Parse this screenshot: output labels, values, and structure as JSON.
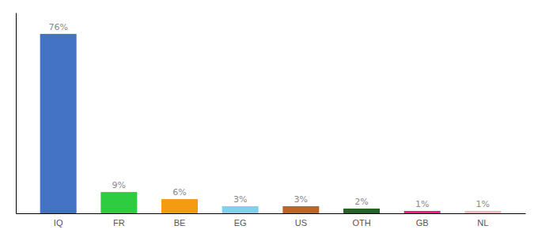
{
  "chart_data": {
    "type": "bar",
    "categories": [
      "IQ",
      "FR",
      "BE",
      "EG",
      "US",
      "OTH",
      "GB",
      "NL"
    ],
    "values": [
      76,
      9,
      6,
      3,
      3,
      2,
      1,
      1
    ],
    "value_labels": [
      "76%",
      "9%",
      "6%",
      "3%",
      "3%",
      "2%",
      "1%",
      "1%"
    ],
    "colors": [
      "#4472c4",
      "#2ecc40",
      "#f39c12",
      "#87ceeb",
      "#c0622a",
      "#276227",
      "#ff1493",
      "#ffb6c1"
    ],
    "ylim": [
      0,
      85
    ],
    "data_labels": true,
    "tick_labels": "x",
    "grid": false
  }
}
